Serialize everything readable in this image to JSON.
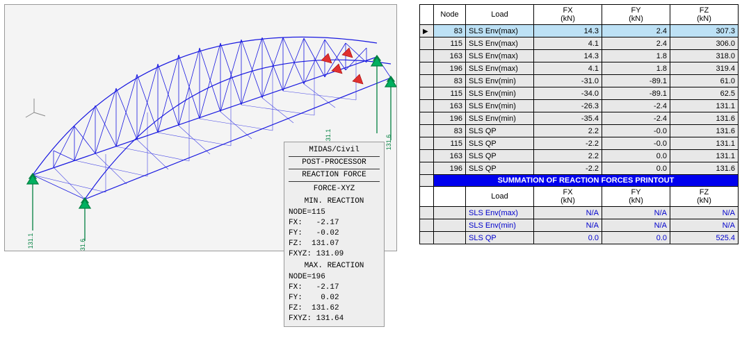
{
  "viewport": {
    "bg": "#f4f4f4",
    "truss_color": "#1818e0",
    "support_color": "#00c080",
    "load_color": "#e03030",
    "node_labels": [
      "131.1",
      "131.6",
      "131.1",
      "131.6"
    ]
  },
  "info": {
    "title1": "MIDAS/Civil",
    "title2": "POST-PROCESSOR",
    "title3": "REACTION FORCE",
    "sub1": "FORCE-XYZ",
    "min_title": "MIN. REACTION",
    "min_node": "NODE=115",
    "min_fx": "FX:   -2.17",
    "min_fy": "FY:   -0.02",
    "min_fz": "FZ:  131.07",
    "min_fxyz": "FXYZ: 131.09",
    "max_title": "MAX. REACTION",
    "max_node": "NODE=196",
    "max_fx": "FX:   -2.17",
    "max_fy": "FY:    0.02",
    "max_fz": "FZ:  131.62",
    "max_fxyz": "FXYZ: 131.64"
  },
  "table": {
    "headers": {
      "node": "Node",
      "load": "Load",
      "fx": "FX",
      "fy": "FY",
      "fz": "FZ",
      "unit": "(kN)"
    },
    "rows": [
      {
        "sel": "▶",
        "node": "83",
        "load": "SLS Env(max)",
        "fx": "14.3",
        "fy": "2.4",
        "fz": "307.3",
        "hl": true
      },
      {
        "sel": "",
        "node": "115",
        "load": "SLS Env(max)",
        "fx": "4.1",
        "fy": "2.4",
        "fz": "306.0"
      },
      {
        "sel": "",
        "node": "163",
        "load": "SLS Env(max)",
        "fx": "14.3",
        "fy": "1.8",
        "fz": "318.0"
      },
      {
        "sel": "",
        "node": "196",
        "load": "SLS Env(max)",
        "fx": "4.1",
        "fy": "1.8",
        "fz": "319.4"
      },
      {
        "sel": "",
        "node": "83",
        "load": "SLS Env(min)",
        "fx": "-31.0",
        "fy": "-89.1",
        "fz": "61.0"
      },
      {
        "sel": "",
        "node": "115",
        "load": "SLS Env(min)",
        "fx": "-34.0",
        "fy": "-89.1",
        "fz": "62.5"
      },
      {
        "sel": "",
        "node": "163",
        "load": "SLS Env(min)",
        "fx": "-26.3",
        "fy": "-2.4",
        "fz": "131.1"
      },
      {
        "sel": "",
        "node": "196",
        "load": "SLS Env(min)",
        "fx": "-35.4",
        "fy": "-2.4",
        "fz": "131.6"
      },
      {
        "sel": "",
        "node": "83",
        "load": "SLS QP",
        "fx": "2.2",
        "fy": "-0.0",
        "fz": "131.6"
      },
      {
        "sel": "",
        "node": "115",
        "load": "SLS QP",
        "fx": "-2.2",
        "fy": "-0.0",
        "fz": "131.1"
      },
      {
        "sel": "",
        "node": "163",
        "load": "SLS QP",
        "fx": "2.2",
        "fy": "0.0",
        "fz": "131.1"
      },
      {
        "sel": "",
        "node": "196",
        "load": "SLS QP",
        "fx": "-2.2",
        "fy": "0.0",
        "fz": "131.6"
      }
    ],
    "sum_banner": "SUMMATION OF REACTION FORCES PRINTOUT",
    "sum_headers": {
      "load": "Load",
      "fx": "FX",
      "fy": "FY",
      "fz": "FZ",
      "unit": "(kN)"
    },
    "sum_rows": [
      {
        "load": "SLS Env(max)",
        "fx": "N/A",
        "fy": "N/A",
        "fz": "N/A"
      },
      {
        "load": "SLS Env(min)",
        "fx": "N/A",
        "fy": "N/A",
        "fz": "N/A"
      },
      {
        "load": "SLS QP",
        "fx": "0.0",
        "fy": "0.0",
        "fz": "525.4"
      }
    ]
  }
}
